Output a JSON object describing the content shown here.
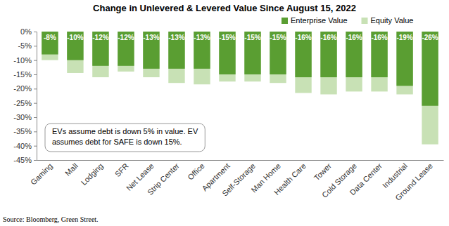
{
  "chart_data": {
    "type": "bar",
    "title": "Change in Unlevered & Levered Value Since August 15, 2022",
    "categories": [
      "Gaming",
      "Mall",
      "Lodging",
      "SFR",
      "Net Lease",
      "Strip Center",
      "Office",
      "Apartment",
      "Self-Storage",
      "Man Home",
      "Health Care",
      "Tower",
      "Cold Storage",
      "Data Center",
      "Industrial",
      "Ground Lease"
    ],
    "series": [
      {
        "name": "Enterprise Value",
        "color": "#5a9e32",
        "data_labels": true,
        "values": [
          -8,
          -10,
          -12,
          -12,
          -13,
          -13,
          -13,
          -15,
          -15,
          -15,
          -16,
          -16,
          -16,
          -16,
          -19,
          -26
        ],
        "value_labels": [
          "-8%",
          "-10%",
          "-12%",
          "-12%",
          "-13%",
          "-13%",
          "-13%",
          "-15%",
          "-15%",
          "-15%",
          "-16%",
          "-16%",
          "-16%",
          "-16%",
          "-19%",
          "-26%"
        ]
      },
      {
        "name": "Equity Value",
        "color": "#c8e1b5",
        "values": [
          -10,
          -14.5,
          -16,
          -14,
          -16,
          -18,
          -18.5,
          -17.5,
          -17.5,
          -18,
          -21.5,
          -22,
          -21,
          -21,
          -22,
          -39.5
        ]
      }
    ],
    "stacked": false,
    "legend": "top",
    "grid": false,
    "ylim": [
      -45,
      0
    ],
    "yticks": [
      {
        "value": 0,
        "label": "0%"
      },
      {
        "value": -5,
        "label": "-5%"
      },
      {
        "value": -10,
        "label": "-10%"
      },
      {
        "value": -15,
        "label": "-15%"
      },
      {
        "value": -20,
        "label": "-20%"
      },
      {
        "value": -25,
        "label": "-25%"
      },
      {
        "value": -30,
        "label": "-30%"
      },
      {
        "value": -35,
        "label": "-35%"
      },
      {
        "value": -40,
        "label": "-40%"
      },
      {
        "value": -45,
        "label": "-45%"
      }
    ],
    "annotation": [
      "EVs assume debt is down 5% in value. EV",
      "assumes debt for SAFE is down 15%."
    ],
    "source": "Source: Bloomberg, Green Street."
  }
}
